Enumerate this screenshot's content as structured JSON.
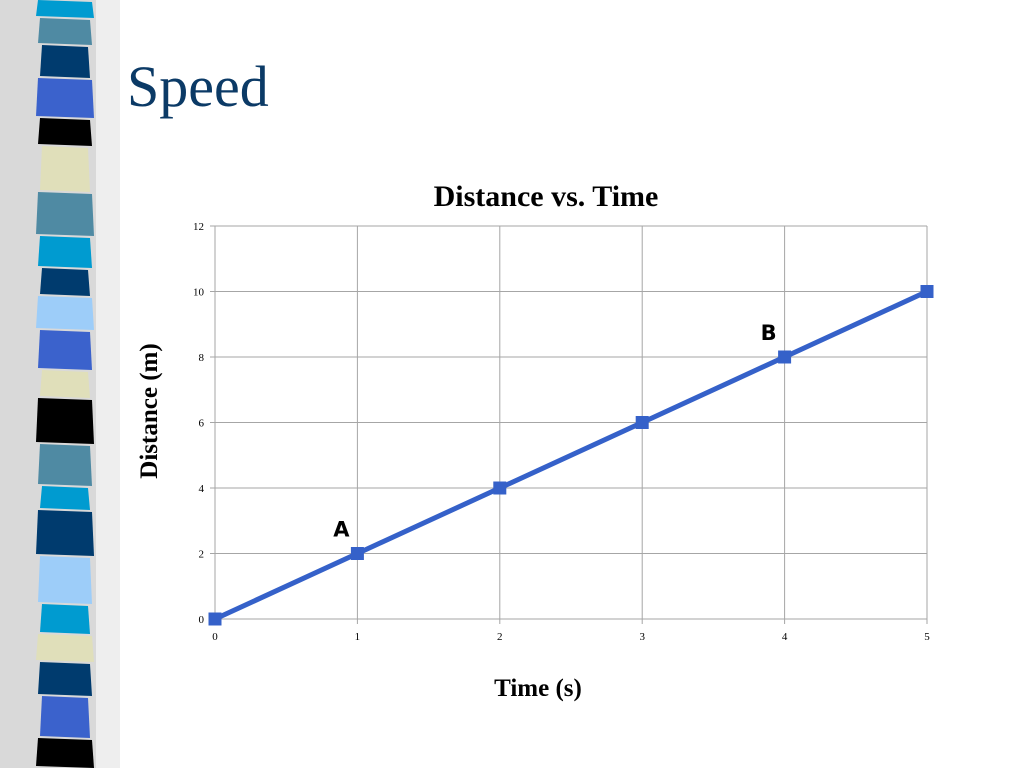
{
  "slide": {
    "title": "Speed"
  },
  "colors": {
    "title": "#0b3a66",
    "series_line": "#3561c9",
    "series_marker": "#3561c9",
    "grid": "#a6a6a6",
    "stripes": [
      "#009bd0",
      "#4f8aa3",
      "#003b6e",
      "#3b62cc",
      "#000000",
      "#e0dfba",
      "#9dcdf9"
    ]
  },
  "chart_data": {
    "type": "line",
    "title": "Distance vs. Time",
    "xlabel": "Time (s)",
    "ylabel": "Distance (m)",
    "x": [
      0,
      1,
      2,
      3,
      4,
      5
    ],
    "series": [
      {
        "values": [
          0,
          2,
          4,
          6,
          8,
          10
        ],
        "marker": "square"
      }
    ],
    "xlim": [
      0,
      5
    ],
    "ylim": [
      0,
      12
    ],
    "xticks": [
      "0",
      "1",
      "2",
      "3",
      "4",
      "5"
    ],
    "yticks": [
      "0",
      "2",
      "4",
      "6",
      "8",
      "10",
      "12"
    ],
    "grid": true,
    "legend": "none",
    "annotations": [
      {
        "text": "A",
        "x": 1,
        "y": 2
      },
      {
        "text": "B",
        "x": 4,
        "y": 8
      }
    ]
  }
}
